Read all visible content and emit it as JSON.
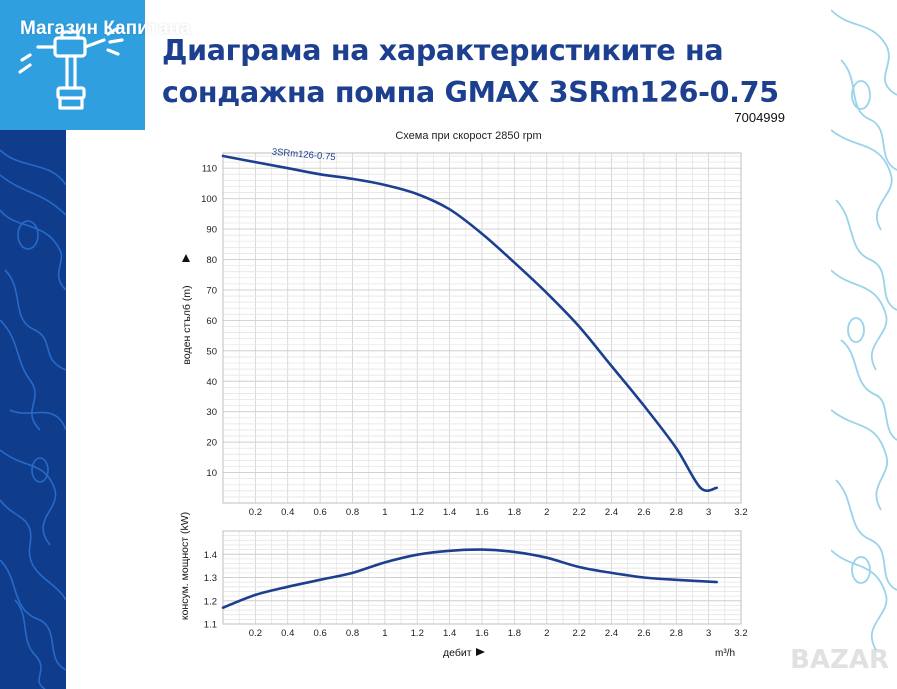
{
  "header": {
    "logo_text": "Магазин Капитана",
    "title_line1": "Диаграма на характеристиките на",
    "title_line2": "сондажна помпа GMAX 3SRm126-0.75",
    "product_code": "7004999",
    "subtitle": "Схема при скорост 2850 rpm",
    "watermark": "BAZAR"
  },
  "colors": {
    "curve": "#1d3f8f",
    "grid": "#d9d9d9",
    "title": "#1d3f8f",
    "side_panel": "#0f3d8c",
    "logo_bg": "#2f9fe0"
  },
  "chart_data": [
    {
      "type": "line",
      "title": "",
      "xlabel": "",
      "ylabel": "воден стълб (m)",
      "xlim": [
        0,
        3.2
      ],
      "ylim": [
        0,
        115
      ],
      "x_ticks": [
        0.2,
        0.4,
        0.6,
        0.8,
        1,
        1.2,
        1.4,
        1.6,
        1.8,
        2,
        2.2,
        2.4,
        2.6,
        2.8,
        3,
        3.2
      ],
      "x_tick_labels": [
        "0.2",
        "0.4",
        "0.6",
        "0.8",
        "1",
        "1.2",
        "1.4",
        "1.6",
        "1.8",
        "2",
        "2.2",
        "2.4",
        "2.6",
        "2.8",
        "3",
        "3.2"
      ],
      "y_ticks": [
        10,
        20,
        30,
        40,
        50,
        60,
        70,
        80,
        90,
        100,
        110
      ],
      "y_tick_labels": [
        "10",
        "20",
        "30",
        "40",
        "50",
        "60",
        "70",
        "80",
        "90",
        "100",
        "110"
      ],
      "grid": true,
      "series": [
        {
          "name": "3SRm126-0.75",
          "x": [
            0,
            0.2,
            0.4,
            0.6,
            0.8,
            1.0,
            1.2,
            1.4,
            1.6,
            1.8,
            2.0,
            2.2,
            2.4,
            2.6,
            2.8,
            2.95,
            3.05
          ],
          "y": [
            114,
            112,
            110,
            108,
            106.5,
            104.5,
            101.5,
            96.5,
            88.5,
            79,
            69,
            58,
            45,
            32,
            18,
            5,
            5
          ]
        }
      ]
    },
    {
      "type": "line",
      "title": "",
      "xlabel": "дебит",
      "ylabel": "консум. мощност (kW)",
      "x_unit": "m³/h",
      "xlim": [
        0,
        3.2
      ],
      "ylim": [
        1.1,
        1.5
      ],
      "x_ticks": [
        0.2,
        0.4,
        0.6,
        0.8,
        1,
        1.2,
        1.4,
        1.6,
        1.8,
        2,
        2.2,
        2.4,
        2.6,
        2.8,
        3,
        3.2
      ],
      "x_tick_labels": [
        "0.2",
        "0.4",
        "0.6",
        "0.8",
        "1",
        "1.2",
        "1.4",
        "1.6",
        "1.8",
        "2",
        "2.2",
        "2.4",
        "2.6",
        "2.8",
        "3",
        "3.2"
      ],
      "y_ticks": [
        1.1,
        1.2,
        1.3,
        1.4
      ],
      "y_tick_labels": [
        "1.1",
        "1.2",
        "1.3",
        "1.4"
      ],
      "grid": true,
      "series": [
        {
          "name": "",
          "x": [
            0,
            0.2,
            0.4,
            0.6,
            0.8,
            1.0,
            1.2,
            1.4,
            1.6,
            1.8,
            2.0,
            2.2,
            2.4,
            2.6,
            2.8,
            3.05
          ],
          "y": [
            1.17,
            1.225,
            1.26,
            1.29,
            1.32,
            1.365,
            1.398,
            1.415,
            1.42,
            1.41,
            1.385,
            1.345,
            1.32,
            1.3,
            1.29,
            1.28
          ]
        }
      ]
    }
  ]
}
